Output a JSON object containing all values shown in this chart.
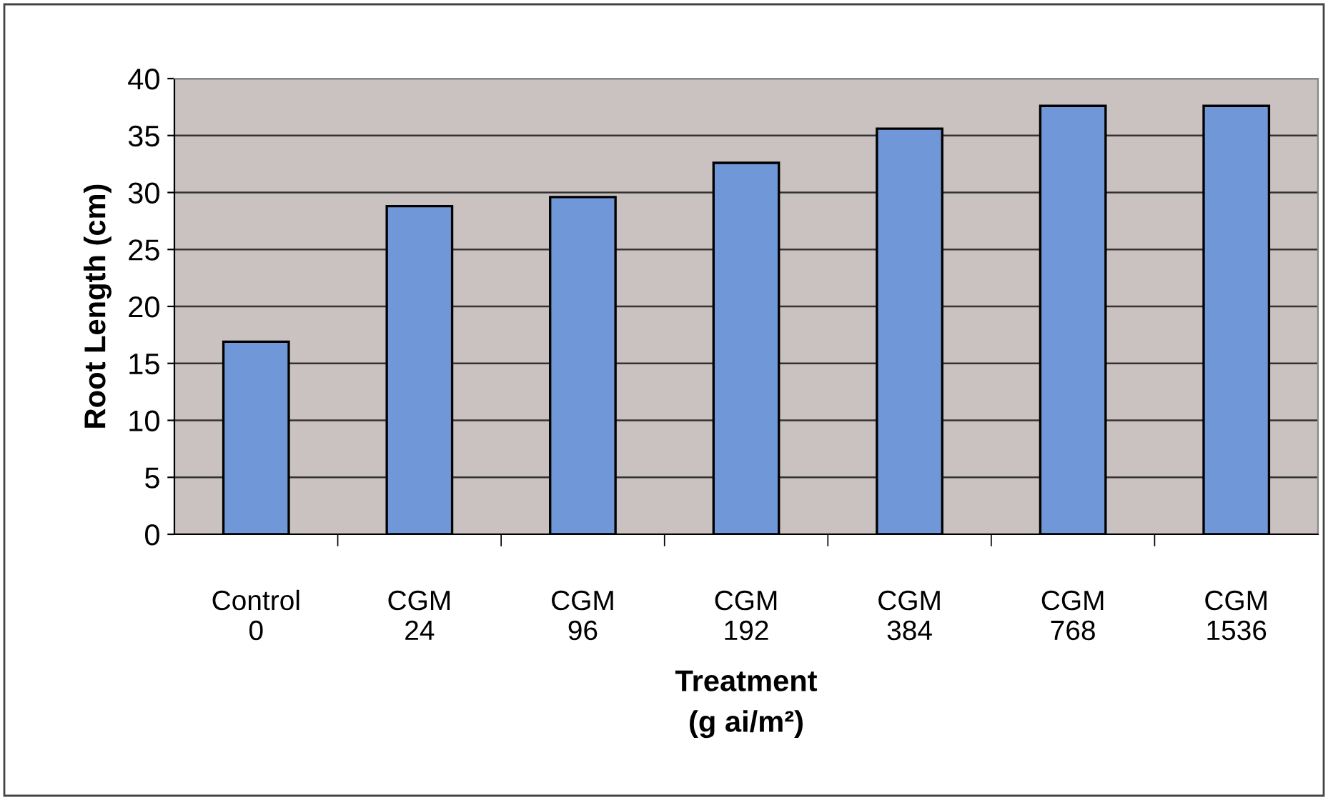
{
  "chart_data": {
    "type": "bar",
    "ylabel": "Root Length (cm)",
    "xlabel": "Treatment\n(g ai/m²)",
    "categories": [
      "Control\n0",
      "CGM\n24",
      "CGM\n96",
      "CGM\n192",
      "CGM\n384",
      "CGM\n768",
      "CGM\n1536"
    ],
    "values": [
      16.9,
      28.8,
      29.6,
      32.6,
      35.6,
      37.6,
      37.6
    ],
    "color": "#7098d8",
    "ylim": [
      0,
      40
    ],
    "yticks": [
      0,
      5,
      10,
      15,
      20,
      25,
      30,
      35,
      40
    ],
    "grid": "y"
  }
}
